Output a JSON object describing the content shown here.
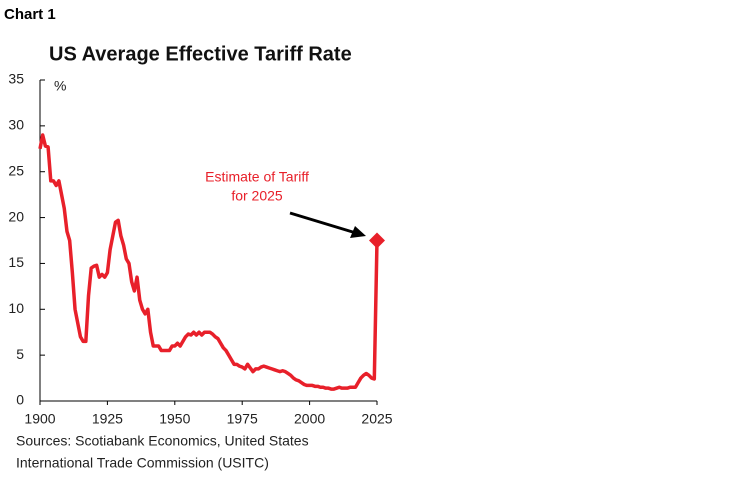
{
  "header": "Chart 1",
  "chart_data": {
    "type": "line",
    "title": "US Average Effective Tariff Rate",
    "y_label": "%",
    "x": [
      1900,
      1901,
      1902,
      1903,
      1904,
      1905,
      1906,
      1907,
      1908,
      1909,
      1910,
      1911,
      1912,
      1913,
      1914,
      1915,
      1916,
      1917,
      1918,
      1919,
      1920,
      1921,
      1922,
      1923,
      1924,
      1925,
      1926,
      1927,
      1928,
      1929,
      1930,
      1931,
      1932,
      1933,
      1934,
      1935,
      1936,
      1937,
      1938,
      1939,
      1940,
      1941,
      1942,
      1943,
      1944,
      1945,
      1946,
      1947,
      1948,
      1949,
      1950,
      1951,
      1952,
      1953,
      1954,
      1955,
      1956,
      1957,
      1958,
      1959,
      1960,
      1961,
      1962,
      1963,
      1964,
      1965,
      1966,
      1967,
      1968,
      1969,
      1970,
      1971,
      1972,
      1973,
      1974,
      1975,
      1976,
      1977,
      1978,
      1979,
      1980,
      1981,
      1982,
      1983,
      1984,
      1985,
      1986,
      1987,
      1988,
      1989,
      1990,
      1991,
      1992,
      1993,
      1994,
      1995,
      1996,
      1997,
      1998,
      1999,
      2000,
      2001,
      2002,
      2003,
      2004,
      2005,
      2006,
      2007,
      2008,
      2009,
      2010,
      2011,
      2012,
      2013,
      2014,
      2015,
      2016,
      2017,
      2018,
      2019,
      2020,
      2021,
      2022,
      2023,
      2024,
      2025
    ],
    "series": [
      {
        "name": "US Average Effective Tariff Rate",
        "color": "#e8202a",
        "values": [
          27.5,
          29,
          27.8,
          27.7,
          24,
          24,
          23.5,
          24,
          22.5,
          21,
          18.5,
          17.5,
          14,
          10,
          8.5,
          7,
          6.5,
          6.5,
          11.5,
          14.5,
          14.7,
          14.8,
          13.5,
          13.8,
          13.5,
          14,
          16.5,
          18,
          19.5,
          19.7,
          18,
          17,
          15.5,
          15,
          13,
          12,
          13.5,
          11,
          10,
          9.5,
          10,
          7.5,
          6,
          6,
          6,
          5.5,
          5.5,
          5.5,
          5.5,
          6,
          6,
          6.3,
          6,
          6.5,
          7,
          7.3,
          7.2,
          7.5,
          7.2,
          7.5,
          7.2,
          7.5,
          7.5,
          7.5,
          7.3,
          7,
          6.8,
          6.3,
          5.8,
          5.5,
          5,
          4.5,
          4,
          4,
          3.8,
          3.7,
          3.5,
          4,
          3.6,
          3.2,
          3.5,
          3.5,
          3.7,
          3.8,
          3.7,
          3.6,
          3.5,
          3.4,
          3.3,
          3.2,
          3.3,
          3.2,
          3,
          2.8,
          2.5,
          2.3,
          2.2,
          2,
          1.8,
          1.7,
          1.7,
          1.7,
          1.6,
          1.6,
          1.5,
          1.5,
          1.4,
          1.4,
          1.3,
          1.3,
          1.4,
          1.5,
          1.4,
          1.4,
          1.4,
          1.5,
          1.5,
          1.5,
          2,
          2.5,
          2.8,
          3,
          2.8,
          2.5,
          2.4,
          17.5
        ]
      }
    ],
    "estimate": {
      "x": 2025,
      "value": 17.5,
      "color": "#e8202a",
      "annotation": [
        "Estimate of Tariff",
        "for 2025"
      ]
    },
    "xlim": [
      1900,
      2025
    ],
    "xticks": [
      1900,
      1925,
      1950,
      1975,
      2000,
      2025
    ],
    "ylim": [
      0,
      35
    ],
    "yticks": [
      0,
      5,
      10,
      15,
      20,
      25,
      30,
      35
    ],
    "grid": false,
    "source": [
      "Sources: Scotiabank Economics, United States",
      "International Trade Commission (USITC)"
    ]
  }
}
